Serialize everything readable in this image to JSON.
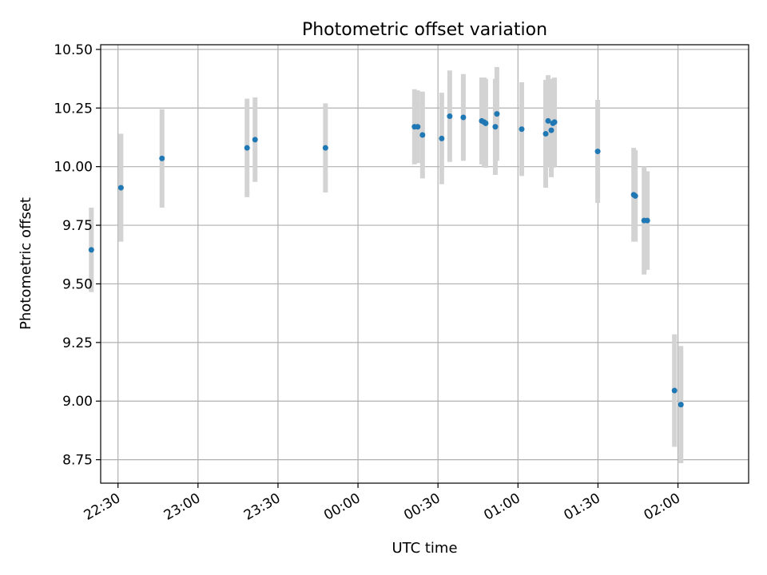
{
  "chart_data": {
    "type": "scatter",
    "title": "Photometric offset variation",
    "xlabel": "UTC time",
    "ylabel": "Photometric offset",
    "x_unit": "minutes relative to 00:00 UTC",
    "xlim": [
      -96.5,
      146.5
    ],
    "ylim": [
      8.65,
      10.52
    ],
    "x_ticks": [
      {
        "value": -90,
        "label": "22:30"
      },
      {
        "value": -60,
        "label": "23:00"
      },
      {
        "value": -30,
        "label": "23:30"
      },
      {
        "value": 0,
        "label": "00:00"
      },
      {
        "value": 30,
        "label": "00:30"
      },
      {
        "value": 60,
        "label": "01:00"
      },
      {
        "value": 90,
        "label": "01:30"
      },
      {
        "value": 120,
        "label": "02:00"
      }
    ],
    "y_ticks": [
      {
        "value": 8.75,
        "label": "8.75"
      },
      {
        "value": 9.0,
        "label": "9.00"
      },
      {
        "value": 9.25,
        "label": "9.25"
      },
      {
        "value": 9.5,
        "label": "9.50"
      },
      {
        "value": 9.75,
        "label": "9.75"
      },
      {
        "value": 10.0,
        "label": "10.00"
      },
      {
        "value": 10.25,
        "label": "10.25"
      },
      {
        "value": 10.5,
        "label": "10.50"
      }
    ],
    "grid": true,
    "point_color": "#1f77b4",
    "errorbar_color": "#d3d3d3",
    "points": [
      {
        "x": -100.0,
        "y": 9.645,
        "err": 0.18
      },
      {
        "x": -88.9,
        "y": 9.91,
        "err": 0.23
      },
      {
        "x": -73.5,
        "y": 10.035,
        "err": 0.21
      },
      {
        "x": -41.6,
        "y": 10.08,
        "err": 0.21
      },
      {
        "x": -38.6,
        "y": 10.115,
        "err": 0.18
      },
      {
        "x": -12.2,
        "y": 10.08,
        "err": 0.19
      },
      {
        "x": 21.2,
        "y": 10.17,
        "err": 0.16
      },
      {
        "x": 22.4,
        "y": 10.17,
        "err": 0.155
      },
      {
        "x": 24.2,
        "y": 10.135,
        "err": 0.185
      },
      {
        "x": 31.4,
        "y": 10.12,
        "err": 0.195
      },
      {
        "x": 34.4,
        "y": 10.215,
        "err": 0.195
      },
      {
        "x": 39.5,
        "y": 10.21,
        "err": 0.185
      },
      {
        "x": 46.4,
        "y": 10.195,
        "err": 0.185
      },
      {
        "x": 47.3,
        "y": 10.19,
        "err": 0.19
      },
      {
        "x": 47.9,
        "y": 10.185,
        "err": 0.19
      },
      {
        "x": 51.5,
        "y": 10.17,
        "err": 0.205
      },
      {
        "x": 52.1,
        "y": 10.225,
        "err": 0.2
      },
      {
        "x": 61.4,
        "y": 10.16,
        "err": 0.2
      },
      {
        "x": 70.4,
        "y": 10.14,
        "err": 0.23
      },
      {
        "x": 71.3,
        "y": 10.195,
        "err": 0.195
      },
      {
        "x": 72.5,
        "y": 10.155,
        "err": 0.2
      },
      {
        "x": 73.1,
        "y": 10.185,
        "err": 0.19
      },
      {
        "x": 73.7,
        "y": 10.19,
        "err": 0.19
      },
      {
        "x": 89.9,
        "y": 10.065,
        "err": 0.22
      },
      {
        "x": 103.4,
        "y": 9.88,
        "err": 0.2
      },
      {
        "x": 104.0,
        "y": 9.875,
        "err": 0.195
      },
      {
        "x": 107.3,
        "y": 9.77,
        "err": 0.23
      },
      {
        "x": 108.5,
        "y": 9.77,
        "err": 0.21
      },
      {
        "x": 118.7,
        "y": 9.045,
        "err": 0.24
      },
      {
        "x": 121.1,
        "y": 8.985,
        "err": 0.25
      }
    ]
  }
}
